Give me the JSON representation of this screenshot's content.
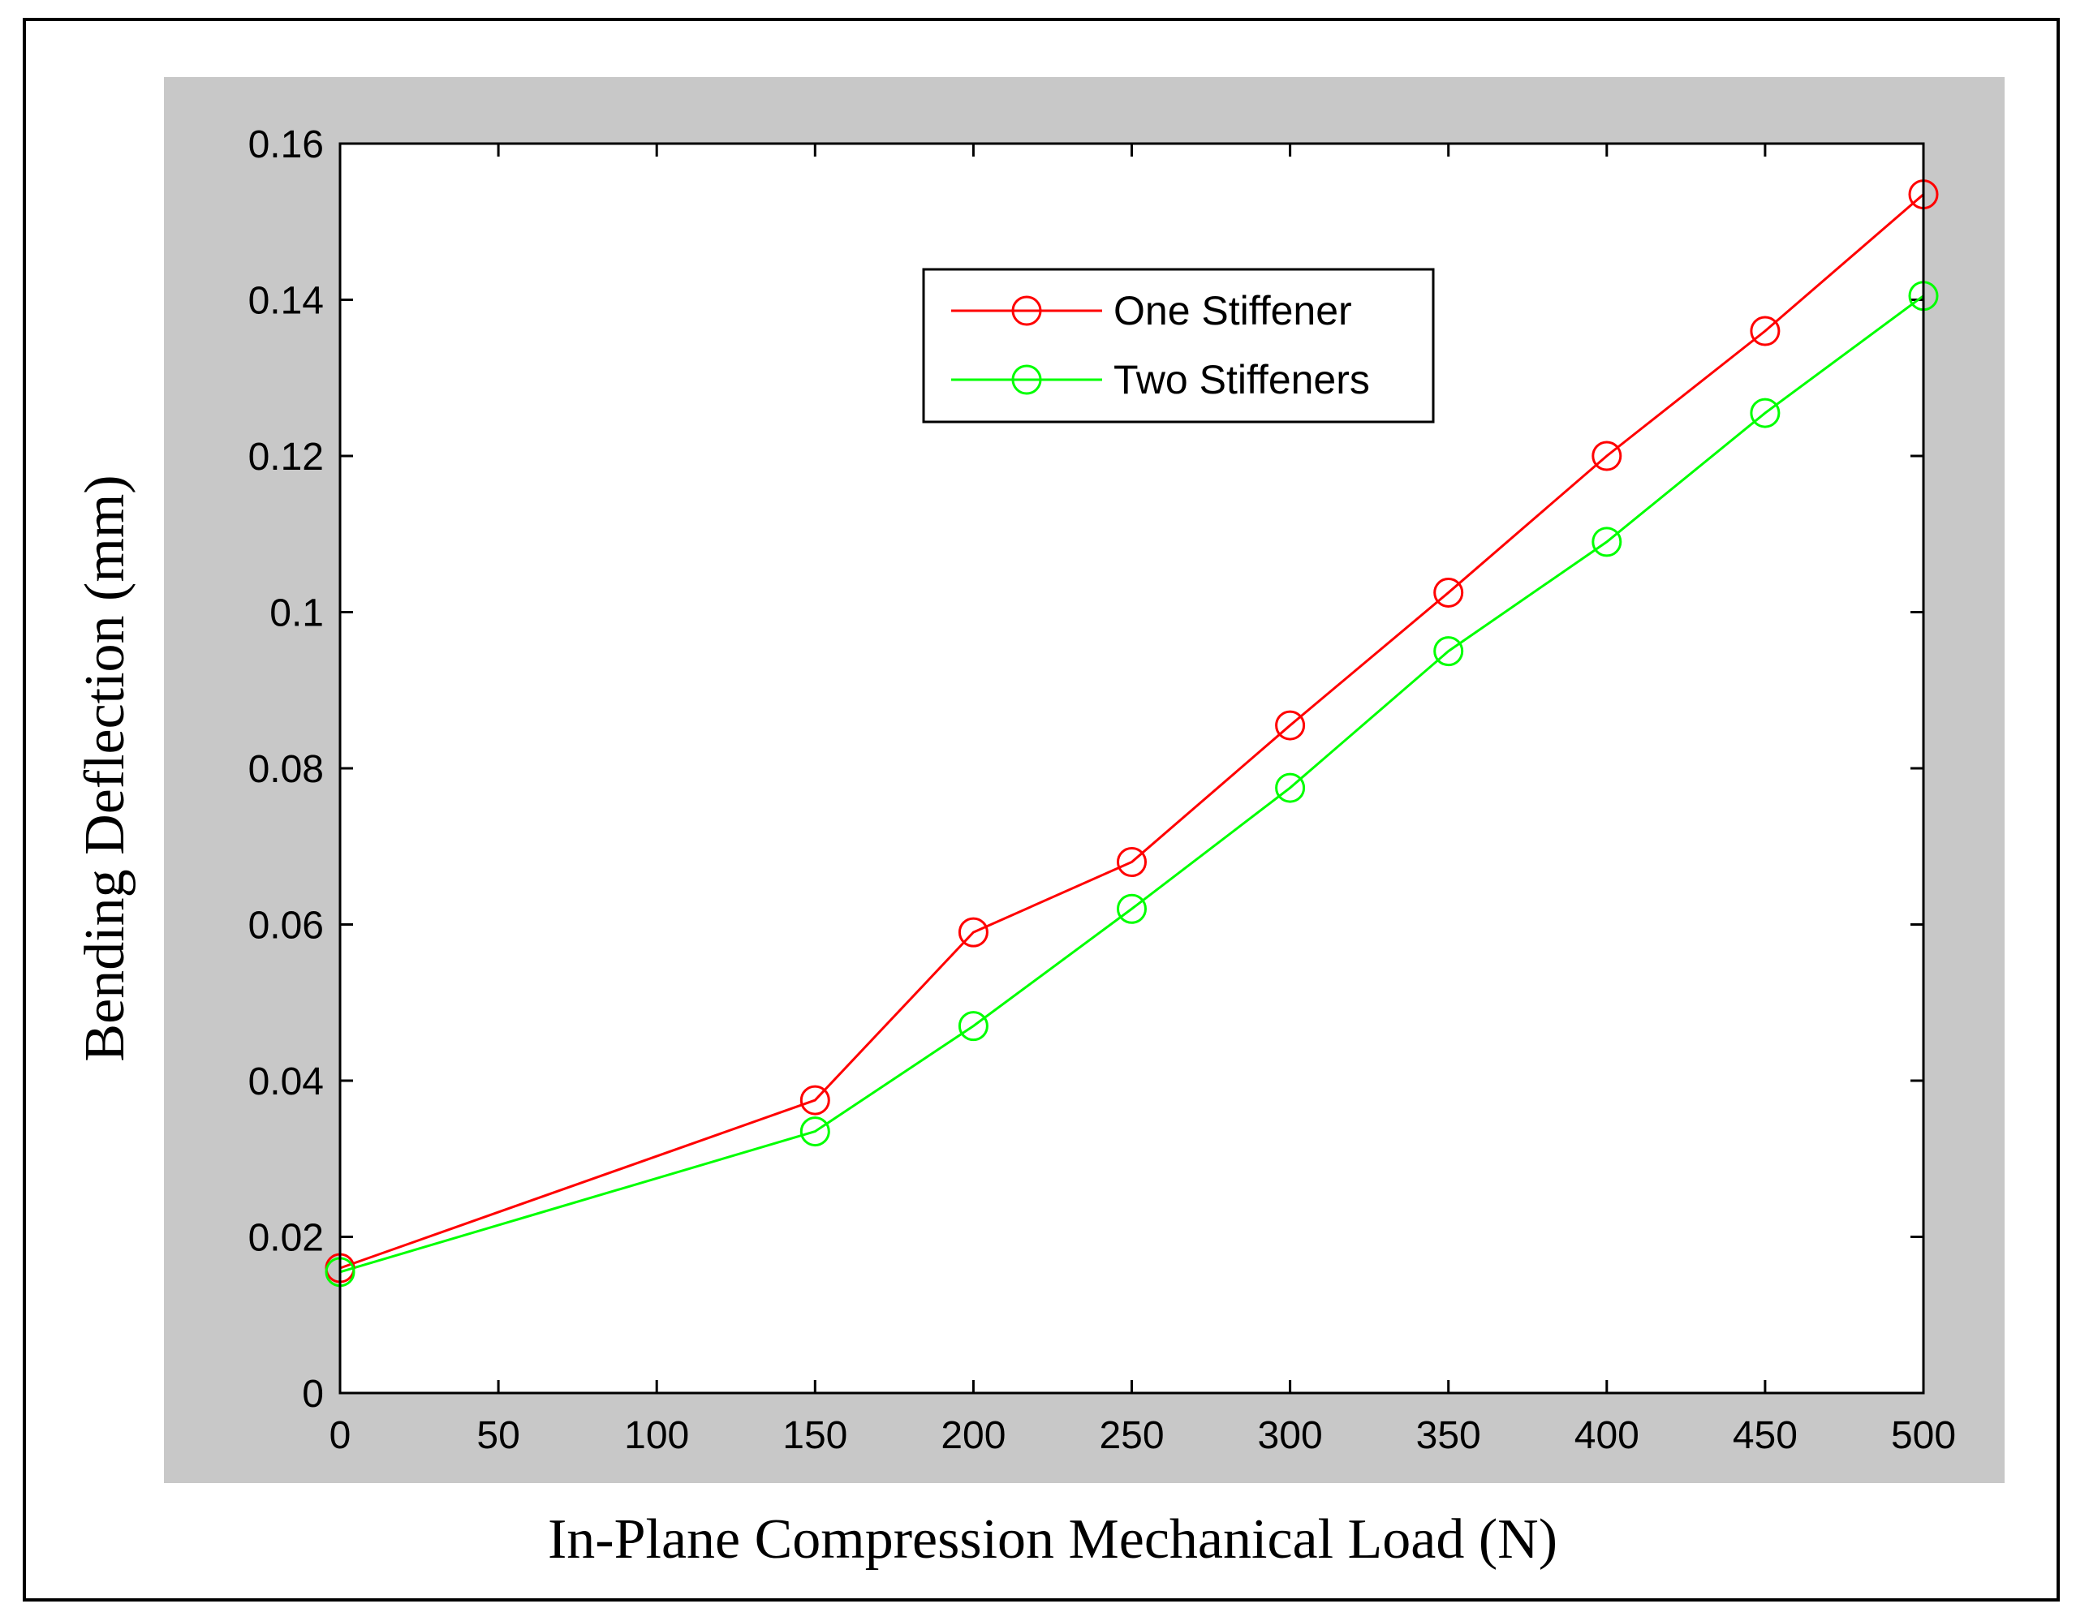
{
  "chart_data": {
    "type": "line",
    "title": "",
    "xlabel": "In-Plane Compression Mechanical Load (N)",
    "ylabel": "Bending Deflection (mm)",
    "xlim": [
      0,
      500
    ],
    "ylim": [
      0,
      0.16
    ],
    "xticks": [
      0,
      50,
      100,
      150,
      200,
      250,
      300,
      350,
      400,
      450,
      500
    ],
    "xtick_labels": [
      "0",
      "50",
      "100",
      "150",
      "200",
      "250",
      "300",
      "350",
      "400",
      "450",
      "500"
    ],
    "yticks": [
      0,
      0.02,
      0.04,
      0.06,
      0.08,
      0.1,
      0.12,
      0.14,
      0.16
    ],
    "ytick_labels": [
      "0",
      "0.02",
      "0.04",
      "0.06",
      "0.08",
      "0.1",
      "0.12",
      "0.14",
      "0.16"
    ],
    "grid": false,
    "legend_position": "upper-center",
    "colors": {
      "figure_bg": "#c8c8c8",
      "axes_bg": "#ffffff"
    },
    "series": [
      {
        "name": "One Stiffener",
        "color": "#ff0000",
        "marker": "circle",
        "x": [
          0,
          150,
          200,
          250,
          300,
          350,
          400,
          450,
          500
        ],
        "y": [
          0.016,
          0.0375,
          0.059,
          0.068,
          0.0855,
          0.1025,
          0.12,
          0.136,
          0.1535
        ]
      },
      {
        "name": "Two Stiffeners",
        "color": "#00ff00",
        "marker": "circle",
        "x": [
          0,
          150,
          200,
          250,
          300,
          350,
          400,
          450,
          500
        ],
        "y": [
          0.0155,
          0.0335,
          0.047,
          0.062,
          0.0775,
          0.095,
          0.109,
          0.1255,
          0.1405
        ]
      }
    ]
  }
}
